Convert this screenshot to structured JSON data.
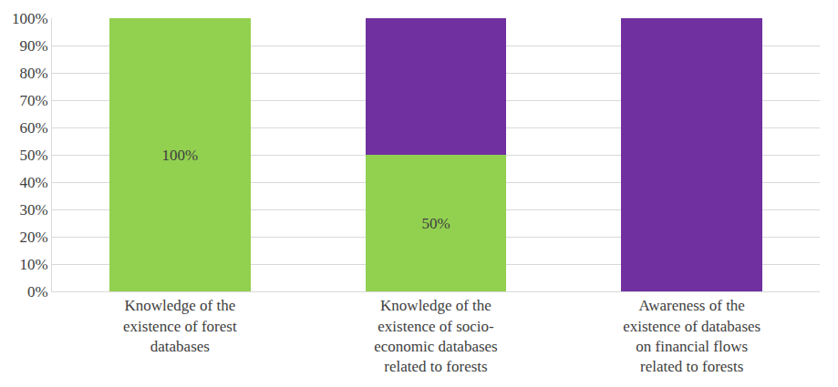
{
  "chart_data": {
    "type": "bar",
    "stacked": true,
    "categories": [
      "Knowledge of the existence of forest databases",
      "Knowledge of the existence of socio-economic databases related to forests",
      "Awareness of the existence of databases on financial flows related to forests"
    ],
    "series": [
      {
        "color": "#92d050",
        "values": [
          100,
          50,
          0
        ],
        "value_labels": [
          "100%",
          "50%",
          null
        ]
      },
      {
        "color": "#7030a0",
        "values": [
          0,
          50,
          100
        ],
        "value_labels": [
          null,
          null,
          null
        ]
      }
    ],
    "ylim": [
      0,
      100
    ],
    "yticks": [
      {
        "value": 0,
        "label": "0%"
      },
      {
        "value": 10,
        "label": "10%"
      },
      {
        "value": 20,
        "label": "20%"
      },
      {
        "value": 30,
        "label": "30%"
      },
      {
        "value": 40,
        "label": "40%"
      },
      {
        "value": 50,
        "label": "50%"
      },
      {
        "value": 60,
        "label": "60%"
      },
      {
        "value": 70,
        "label": "70%"
      },
      {
        "value": 80,
        "label": "80%"
      },
      {
        "value": 90,
        "label": "90%"
      },
      {
        "value": 100,
        "label": "100%"
      }
    ],
    "grid": true,
    "data_labels": true
  }
}
